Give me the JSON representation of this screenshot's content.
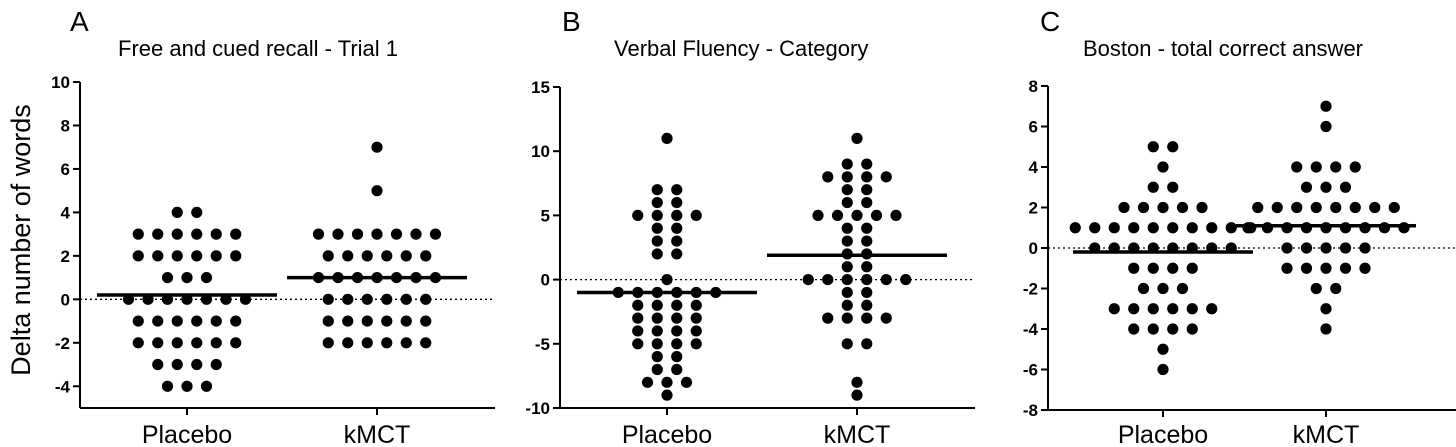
{
  "ylabel": "Delta number of words",
  "chart_data": [
    {
      "type": "scatter",
      "panel": "A",
      "title": "Free and cued recall - Trial 1",
      "ylabel": "Delta number of words",
      "ylim": [
        -5,
        10
      ],
      "yticks": [
        -4,
        -2,
        0,
        2,
        4,
        6,
        8,
        10
      ],
      "categories": [
        "Placebo",
        "kMCT"
      ],
      "reference_line": 0,
      "series": [
        {
          "name": "Placebo",
          "mean": 0.2,
          "counts": [
            {
              "y": 4,
              "n": 2
            },
            {
              "y": 3,
              "n": 6
            },
            {
              "y": 2,
              "n": 6
            },
            {
              "y": 1,
              "n": 3
            },
            {
              "y": 0,
              "n": 7
            },
            {
              "y": -1,
              "n": 6
            },
            {
              "y": -2,
              "n": 6
            },
            {
              "y": -3,
              "n": 4
            },
            {
              "y": -4,
              "n": 3
            }
          ]
        },
        {
          "name": "kMCT",
          "mean": 1.0,
          "counts": [
            {
              "y": 7,
              "n": 1
            },
            {
              "y": 5,
              "n": 1
            },
            {
              "y": 3,
              "n": 7
            },
            {
              "y": 2,
              "n": 6
            },
            {
              "y": 1,
              "n": 7
            },
            {
              "y": 0,
              "n": 6
            },
            {
              "y": -1,
              "n": 6
            },
            {
              "y": -2,
              "n": 6
            }
          ]
        }
      ]
    },
    {
      "type": "scatter",
      "panel": "B",
      "title": "Verbal Fluency - Category",
      "ylim": [
        -10,
        15
      ],
      "yticks": [
        -10,
        -5,
        0,
        5,
        10,
        15
      ],
      "categories": [
        "Placebo",
        "kMCT"
      ],
      "reference_line": 0,
      "series": [
        {
          "name": "Placebo",
          "mean": -1.0,
          "counts": [
            {
              "y": 11,
              "n": 1
            },
            {
              "y": 7,
              "n": 2
            },
            {
              "y": 6,
              "n": 2
            },
            {
              "y": 5,
              "n": 4
            },
            {
              "y": 4,
              "n": 2
            },
            {
              "y": 3,
              "n": 2
            },
            {
              "y": 2,
              "n": 2
            },
            {
              "y": 0,
              "n": 1
            },
            {
              "y": -1,
              "n": 6
            },
            {
              "y": -2,
              "n": 4
            },
            {
              "y": -3,
              "n": 4
            },
            {
              "y": -4,
              "n": 4
            },
            {
              "y": -5,
              "n": 4
            },
            {
              "y": -6,
              "n": 2
            },
            {
              "y": -7,
              "n": 2
            },
            {
              "y": -8,
              "n": 3
            },
            {
              "y": -9,
              "n": 1
            }
          ]
        },
        {
          "name": "kMCT",
          "mean": 1.9,
          "counts": [
            {
              "y": 11,
              "n": 1
            },
            {
              "y": 9,
              "n": 2
            },
            {
              "y": 8,
              "n": 4
            },
            {
              "y": 7,
              "n": 2
            },
            {
              "y": 6,
              "n": 2
            },
            {
              "y": 5,
              "n": 5
            },
            {
              "y": 4,
              "n": 2
            },
            {
              "y": 3,
              "n": 2
            },
            {
              "y": 2,
              "n": 2
            },
            {
              "y": 1,
              "n": 2
            },
            {
              "y": 0,
              "n": 6
            },
            {
              "y": -1,
              "n": 2
            },
            {
              "y": -2,
              "n": 2
            },
            {
              "y": -3,
              "n": 4
            },
            {
              "y": -5,
              "n": 2
            },
            {
              "y": -8,
              "n": 1
            },
            {
              "y": -9,
              "n": 1
            }
          ]
        }
      ]
    },
    {
      "type": "scatter",
      "panel": "C",
      "title": "Boston - total correct answer",
      "ylim": [
        -8,
        8
      ],
      "yticks": [
        -8,
        -6,
        -4,
        -2,
        0,
        2,
        4,
        6,
        8
      ],
      "categories": [
        "Placebo",
        "kMCT"
      ],
      "reference_line": 0,
      "series": [
        {
          "name": "Placebo",
          "mean": -0.2,
          "counts": [
            {
              "y": 5,
              "n": 2
            },
            {
              "y": 4,
              "n": 1
            },
            {
              "y": 3,
              "n": 2
            },
            {
              "y": 2,
              "n": 5
            },
            {
              "y": 1,
              "n": 10
            },
            {
              "y": 0,
              "n": 8
            },
            {
              "y": -1,
              "n": 4
            },
            {
              "y": -2,
              "n": 3
            },
            {
              "y": -3,
              "n": 6
            },
            {
              "y": -4,
              "n": 4
            },
            {
              "y": -5,
              "n": 1
            },
            {
              "y": -6,
              "n": 1
            }
          ]
        },
        {
          "name": "kMCT",
          "mean": 1.1,
          "counts": [
            {
              "y": 7,
              "n": 1
            },
            {
              "y": 6,
              "n": 1
            },
            {
              "y": 4,
              "n": 4
            },
            {
              "y": 3,
              "n": 3
            },
            {
              "y": 2,
              "n": 8
            },
            {
              "y": 1,
              "n": 9
            },
            {
              "y": 0,
              "n": 5
            },
            {
              "y": -1,
              "n": 5
            },
            {
              "y": -2,
              "n": 2
            },
            {
              "y": -3,
              "n": 1
            },
            {
              "y": -4,
              "n": 1
            }
          ]
        }
      ]
    }
  ]
}
